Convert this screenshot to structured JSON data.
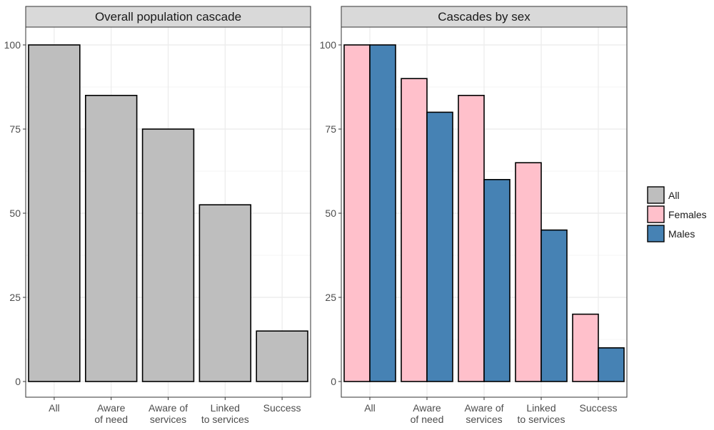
{
  "colors": {
    "All": "#bebebe",
    "Females": "#ffc0cb",
    "Males": "#4682b4",
    "strip_bg": "#d9d9d9",
    "grid_major": "#ebebeb",
    "grid_minor": "#f5f5f5"
  },
  "chart_data": [
    {
      "type": "bar",
      "title": "Overall population cascade",
      "categories": [
        [
          "All"
        ],
        [
          "Aware",
          "of need"
        ],
        [
          "Aware of",
          "services"
        ],
        [
          "Linked",
          "to services"
        ],
        [
          "Success"
        ]
      ],
      "series": [
        {
          "name": "All",
          "values": [
            100,
            85,
            75,
            52.5,
            15
          ]
        }
      ],
      "ylim": [
        0,
        100
      ],
      "yticks": [
        0,
        25,
        50,
        75,
        100
      ],
      "grid": true
    },
    {
      "type": "bar",
      "title": "Cascades by sex",
      "categories": [
        [
          "All"
        ],
        [
          "Aware",
          "of need"
        ],
        [
          "Aware of",
          "services"
        ],
        [
          "Linked",
          "to services"
        ],
        [
          "Success"
        ]
      ],
      "series": [
        {
          "name": "Females",
          "values": [
            100,
            90,
            85,
            65,
            20
          ]
        },
        {
          "name": "Males",
          "values": [
            100,
            80,
            60,
            45,
            10
          ]
        }
      ],
      "ylim": [
        0,
        100
      ],
      "yticks": [
        0,
        25,
        50,
        75,
        100
      ],
      "grid": true
    }
  ],
  "legend": {
    "placement": "right",
    "entries": [
      "All",
      "Females",
      "Males"
    ]
  }
}
